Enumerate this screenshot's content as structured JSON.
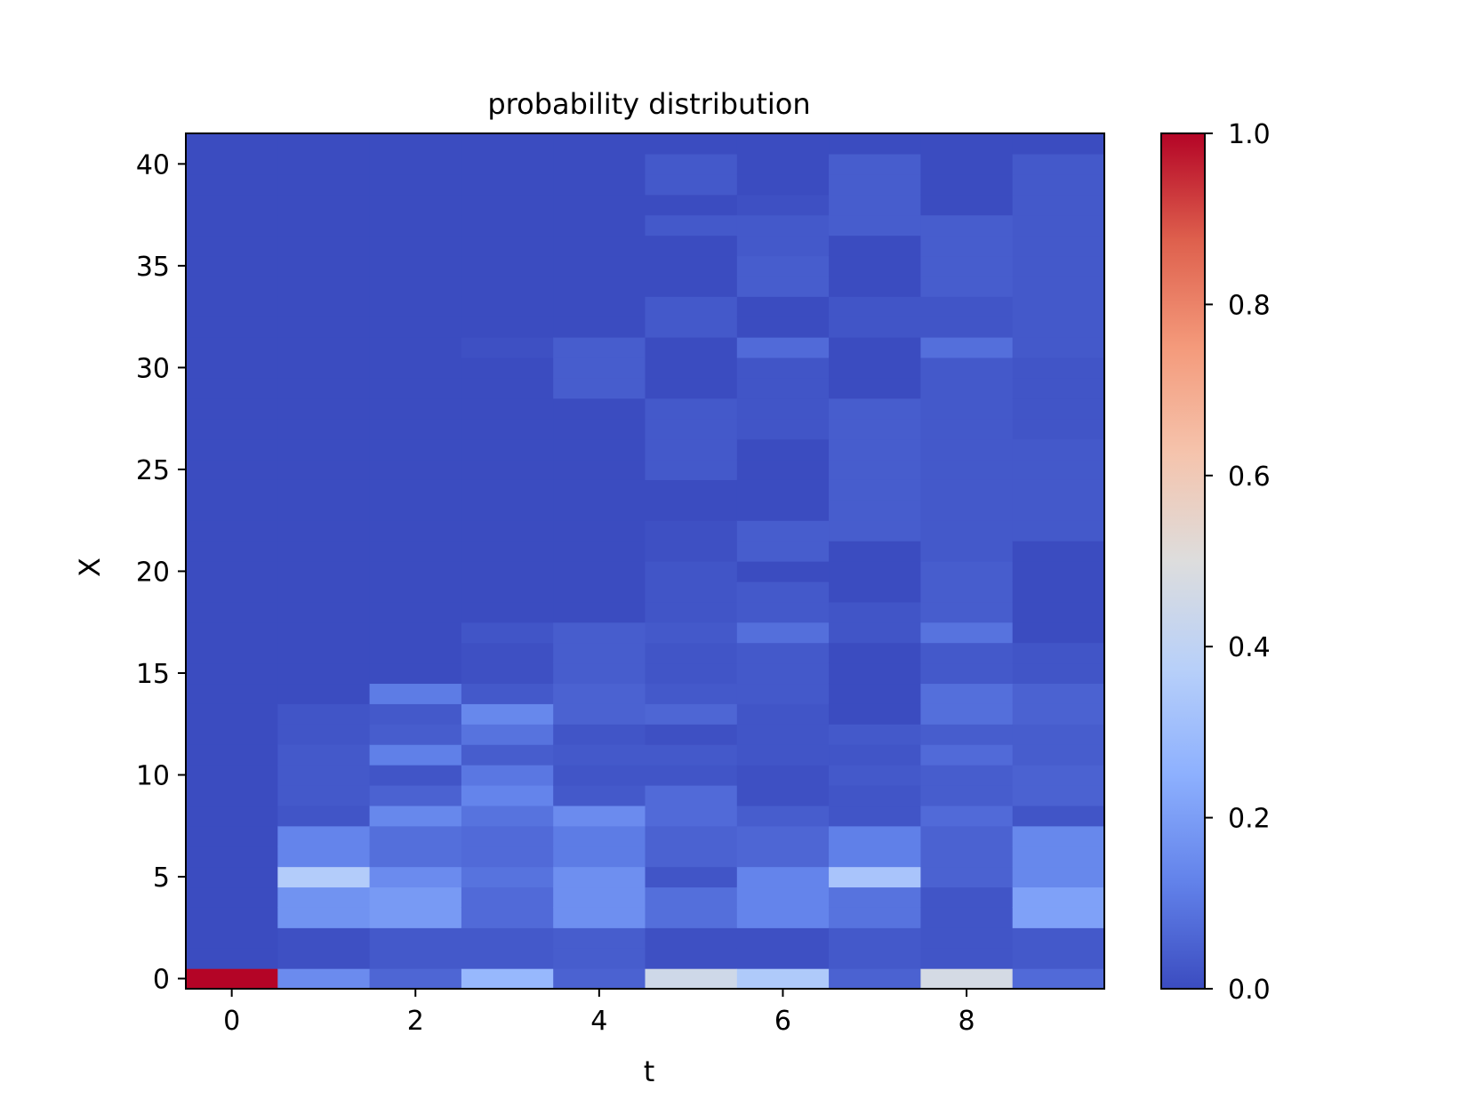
{
  "chart_data": {
    "type": "heatmap",
    "title": "probability distribution",
    "xlabel": "t",
    "ylabel": "X",
    "x": [
      0,
      1,
      2,
      3,
      4,
      5,
      6,
      7,
      8,
      9
    ],
    "y_range": [
      0,
      41
    ],
    "xlim": [
      -0.5,
      9.5
    ],
    "ylim": [
      -0.5,
      41.5
    ],
    "xticks": [
      0,
      2,
      4,
      6,
      8
    ],
    "yticks": [
      0,
      5,
      10,
      15,
      20,
      25,
      30,
      35,
      40
    ],
    "colormap": "coolwarm",
    "colorbar": {
      "min": 0.0,
      "max": 1.0,
      "ticks": [
        "0.0",
        "0.2",
        "0.4",
        "0.6",
        "0.8",
        "1.0"
      ]
    },
    "default_value": 0.0,
    "columns": [
      {
        "t": 0,
        "segments": [
          [
            0,
            0,
            1.0
          ]
        ]
      },
      {
        "t": 1,
        "segments": [
          [
            0,
            0,
            0.15
          ],
          [
            1,
            2,
            0.01
          ],
          [
            3,
            4,
            0.17
          ],
          [
            5,
            5,
            0.36
          ],
          [
            6,
            7,
            0.13
          ],
          [
            8,
            8,
            0.02
          ],
          [
            9,
            11,
            0.03
          ],
          [
            12,
            13,
            0.02
          ]
        ]
      },
      {
        "t": 2,
        "segments": [
          [
            0,
            0,
            0.06
          ],
          [
            1,
            2,
            0.03
          ],
          [
            3,
            4,
            0.19
          ],
          [
            5,
            5,
            0.15
          ],
          [
            6,
            7,
            0.08
          ],
          [
            8,
            8,
            0.14
          ],
          [
            9,
            9,
            0.05
          ],
          [
            10,
            10,
            0.02
          ],
          [
            11,
            11,
            0.12
          ],
          [
            12,
            12,
            0.04
          ],
          [
            13,
            13,
            0.03
          ],
          [
            14,
            14,
            0.11
          ]
        ]
      },
      {
        "t": 3,
        "segments": [
          [
            0,
            0,
            0.28
          ],
          [
            1,
            2,
            0.03
          ],
          [
            3,
            4,
            0.07
          ],
          [
            5,
            5,
            0.09
          ],
          [
            6,
            7,
            0.07
          ],
          [
            8,
            8,
            0.09
          ],
          [
            9,
            9,
            0.13
          ],
          [
            10,
            10,
            0.1
          ],
          [
            11,
            11,
            0.04
          ],
          [
            12,
            12,
            0.09
          ],
          [
            13,
            13,
            0.14
          ],
          [
            14,
            14,
            0.03
          ],
          [
            15,
            16,
            0.01
          ],
          [
            17,
            17,
            0.02
          ],
          [
            31,
            31,
            0.01
          ]
        ]
      },
      {
        "t": 4,
        "segments": [
          [
            0,
            0,
            0.05
          ],
          [
            1,
            2,
            0.04
          ],
          [
            3,
            4,
            0.16
          ],
          [
            5,
            5,
            0.16
          ],
          [
            6,
            7,
            0.11
          ],
          [
            8,
            8,
            0.15
          ],
          [
            9,
            9,
            0.03
          ],
          [
            10,
            10,
            0.02
          ],
          [
            11,
            11,
            0.03
          ],
          [
            12,
            12,
            0.02
          ],
          [
            13,
            13,
            0.05
          ],
          [
            14,
            14,
            0.05
          ],
          [
            15,
            17,
            0.04
          ],
          [
            29,
            31,
            0.04
          ]
        ]
      },
      {
        "t": 5,
        "segments": [
          [
            0,
            0,
            0.45
          ],
          [
            1,
            2,
            0.01
          ],
          [
            3,
            4,
            0.08
          ],
          [
            5,
            5,
            0.02
          ],
          [
            6,
            7,
            0.05
          ],
          [
            8,
            9,
            0.07
          ],
          [
            10,
            10,
            0.02
          ],
          [
            11,
            11,
            0.03
          ],
          [
            12,
            12,
            0.01
          ],
          [
            13,
            13,
            0.06
          ],
          [
            14,
            14,
            0.03
          ],
          [
            15,
            16,
            0.02
          ],
          [
            17,
            17,
            0.03
          ],
          [
            18,
            20,
            0.02
          ],
          [
            21,
            22,
            0.01
          ],
          [
            25,
            28,
            0.03
          ],
          [
            32,
            33,
            0.03
          ],
          [
            37,
            37,
            0.03
          ],
          [
            39,
            40,
            0.03
          ]
        ]
      },
      {
        "t": 6,
        "segments": [
          [
            0,
            0,
            0.35
          ],
          [
            1,
            2,
            0.01
          ],
          [
            3,
            5,
            0.13
          ],
          [
            6,
            7,
            0.06
          ],
          [
            8,
            8,
            0.04
          ],
          [
            9,
            10,
            0.01
          ],
          [
            11,
            13,
            0.02
          ],
          [
            14,
            16,
            0.03
          ],
          [
            17,
            17,
            0.08
          ],
          [
            18,
            19,
            0.03
          ],
          [
            21,
            22,
            0.04
          ],
          [
            27,
            30,
            0.02
          ],
          [
            31,
            31,
            0.07
          ],
          [
            34,
            35,
            0.04
          ],
          [
            36,
            37,
            0.03
          ],
          [
            38,
            38,
            0.01
          ]
        ]
      },
      {
        "t": 7,
        "segments": [
          [
            0,
            0,
            0.05
          ],
          [
            1,
            2,
            0.03
          ],
          [
            3,
            4,
            0.09
          ],
          [
            5,
            5,
            0.33
          ],
          [
            6,
            7,
            0.12
          ],
          [
            8,
            9,
            0.02
          ],
          [
            10,
            10,
            0.03
          ],
          [
            11,
            11,
            0.02
          ],
          [
            12,
            12,
            0.03
          ],
          [
            17,
            18,
            0.02
          ],
          [
            22,
            28,
            0.04
          ],
          [
            32,
            33,
            0.02
          ],
          [
            37,
            40,
            0.04
          ]
        ]
      },
      {
        "t": 8,
        "segments": [
          [
            0,
            0,
            0.47
          ],
          [
            1,
            4,
            0.02
          ],
          [
            5,
            7,
            0.05
          ],
          [
            8,
            8,
            0.07
          ],
          [
            9,
            10,
            0.04
          ],
          [
            11,
            11,
            0.07
          ],
          [
            12,
            12,
            0.04
          ],
          [
            13,
            14,
            0.08
          ],
          [
            15,
            16,
            0.03
          ],
          [
            17,
            17,
            0.09
          ],
          [
            18,
            20,
            0.04
          ],
          [
            21,
            23,
            0.03
          ],
          [
            24,
            30,
            0.03
          ],
          [
            31,
            31,
            0.08
          ],
          [
            32,
            33,
            0.02
          ],
          [
            34,
            37,
            0.04
          ]
        ]
      },
      {
        "t": 9,
        "segments": [
          [
            0,
            0,
            0.07
          ],
          [
            1,
            2,
            0.03
          ],
          [
            3,
            4,
            0.21
          ],
          [
            5,
            7,
            0.14
          ],
          [
            8,
            8,
            0.02
          ],
          [
            9,
            10,
            0.05
          ],
          [
            11,
            12,
            0.04
          ],
          [
            13,
            14,
            0.05
          ],
          [
            15,
            16,
            0.02
          ],
          [
            22,
            26,
            0.03
          ],
          [
            27,
            30,
            0.02
          ],
          [
            31,
            40,
            0.03
          ]
        ]
      }
    ]
  }
}
